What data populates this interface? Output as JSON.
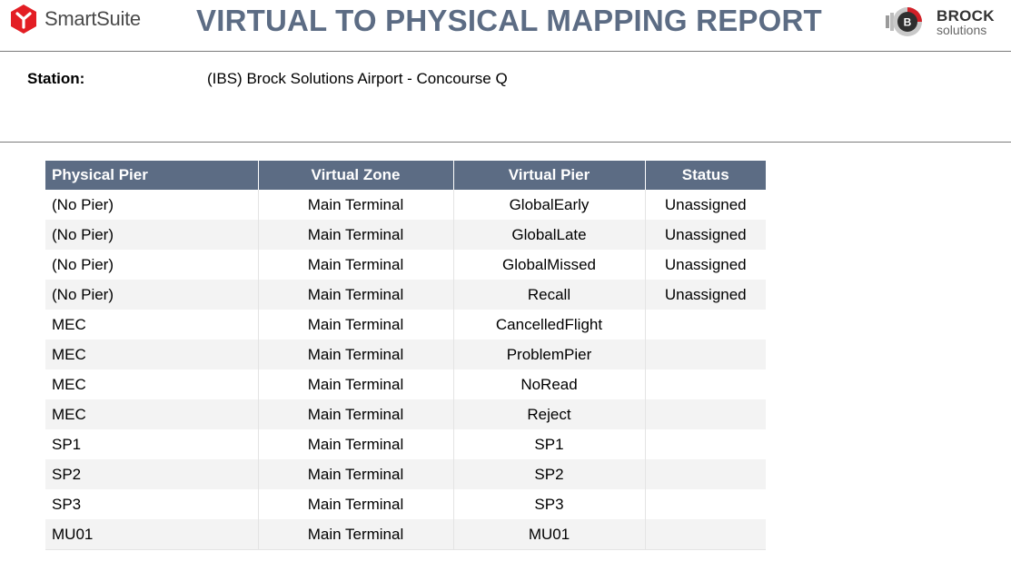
{
  "header": {
    "app_name": "SmartSuite",
    "report_title": "VIRTUAL TO PHYSICAL MAPPING REPORT",
    "company_logo_name": "BROCK",
    "company_logo_sub": "solutions",
    "company_logo_badge": "B",
    "icons": [
      "smartsuite-logo-icon",
      "brock-solutions-logo-icon"
    ],
    "colors": {
      "title": "#5c6c84",
      "smartsuite_red": "#e31e24",
      "brock_red": "#d32027"
    }
  },
  "station": {
    "label": "Station:",
    "value": "(IBS) Brock Solutions Airport - Concourse Q"
  },
  "table": {
    "columns": [
      "Physical Pier",
      "Virtual Zone",
      "Virtual Pier",
      "Status"
    ],
    "header_color": "#5c6c84",
    "rows": [
      [
        "(No Pier)",
        "Main Terminal",
        "GlobalEarly",
        "Unassigned"
      ],
      [
        "(No Pier)",
        "Main Terminal",
        "GlobalLate",
        "Unassigned"
      ],
      [
        "(No Pier)",
        "Main Terminal",
        "GlobalMissed",
        "Unassigned"
      ],
      [
        "(No Pier)",
        "Main Terminal",
        "Recall",
        "Unassigned"
      ],
      [
        "MEC",
        "Main Terminal",
        "CancelledFlight",
        ""
      ],
      [
        "MEC",
        "Main Terminal",
        "ProblemPier",
        ""
      ],
      [
        "MEC",
        "Main Terminal",
        "NoRead",
        ""
      ],
      [
        "MEC",
        "Main Terminal",
        "Reject",
        ""
      ],
      [
        "SP1",
        "Main Terminal",
        "SP1",
        ""
      ],
      [
        "SP2",
        "Main Terminal",
        "SP2",
        ""
      ],
      [
        "SP3",
        "Main Terminal",
        "SP3",
        ""
      ],
      [
        "MU01",
        "Main Terminal",
        "MU01",
        ""
      ]
    ]
  }
}
